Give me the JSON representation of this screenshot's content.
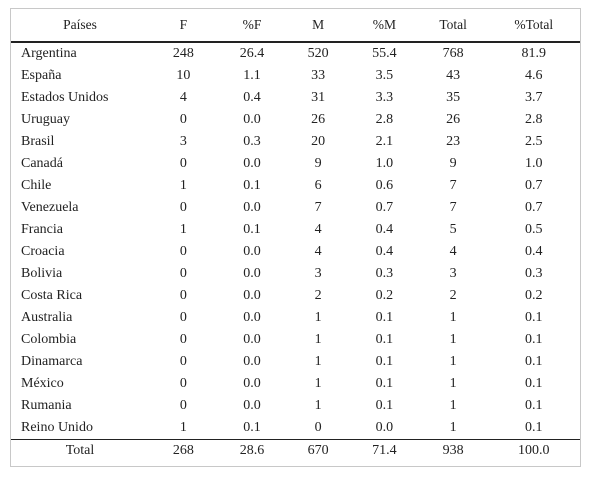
{
  "table": {
    "headers": [
      "Países",
      "F",
      "%F",
      "M",
      "%M",
      "Total",
      "%Total"
    ],
    "rows": [
      [
        "Argentina",
        "248",
        "26.4",
        "520",
        "55.4",
        "768",
        "81.9"
      ],
      [
        "España",
        "10",
        "1.1",
        "33",
        "3.5",
        "43",
        "4.6"
      ],
      [
        "Estados Unidos",
        "4",
        "0.4",
        "31",
        "3.3",
        "35",
        "3.7"
      ],
      [
        "Uruguay",
        "0",
        "0.0",
        "26",
        "2.8",
        "26",
        "2.8"
      ],
      [
        "Brasil",
        "3",
        "0.3",
        "20",
        "2.1",
        "23",
        "2.5"
      ],
      [
        "Canadá",
        "0",
        "0.0",
        "9",
        "1.0",
        "9",
        "1.0"
      ],
      [
        "Chile",
        "1",
        "0.1",
        "6",
        "0.6",
        "7",
        "0.7"
      ],
      [
        "Venezuela",
        "0",
        "0.0",
        "7",
        "0.7",
        "7",
        "0.7"
      ],
      [
        "Francia",
        "1",
        "0.1",
        "4",
        "0.4",
        "5",
        "0.5"
      ],
      [
        "Croacia",
        "0",
        "0.0",
        "4",
        "0.4",
        "4",
        "0.4"
      ],
      [
        "Bolivia",
        "0",
        "0.0",
        "3",
        "0.3",
        "3",
        "0.3"
      ],
      [
        "Costa Rica",
        "0",
        "0.0",
        "2",
        "0.2",
        "2",
        "0.2"
      ],
      [
        "Australia",
        "0",
        "0.0",
        "1",
        "0.1",
        "1",
        "0.1"
      ],
      [
        "Colombia",
        "0",
        "0.0",
        "1",
        "0.1",
        "1",
        "0.1"
      ],
      [
        "Dinamarca",
        "0",
        "0.0",
        "1",
        "0.1",
        "1",
        "0.1"
      ],
      [
        "México",
        "0",
        "0.0",
        "1",
        "0.1",
        "1",
        "0.1"
      ],
      [
        "Rumania",
        "0",
        "0.0",
        "1",
        "0.1",
        "1",
        "0.1"
      ],
      [
        "Reino Unido",
        "1",
        "0.1",
        "0",
        "0.0",
        "1",
        "0.1"
      ]
    ],
    "total_row": [
      "Total",
      "268",
      "28.6",
      "670",
      "71.4",
      "938",
      "100.0"
    ]
  }
}
